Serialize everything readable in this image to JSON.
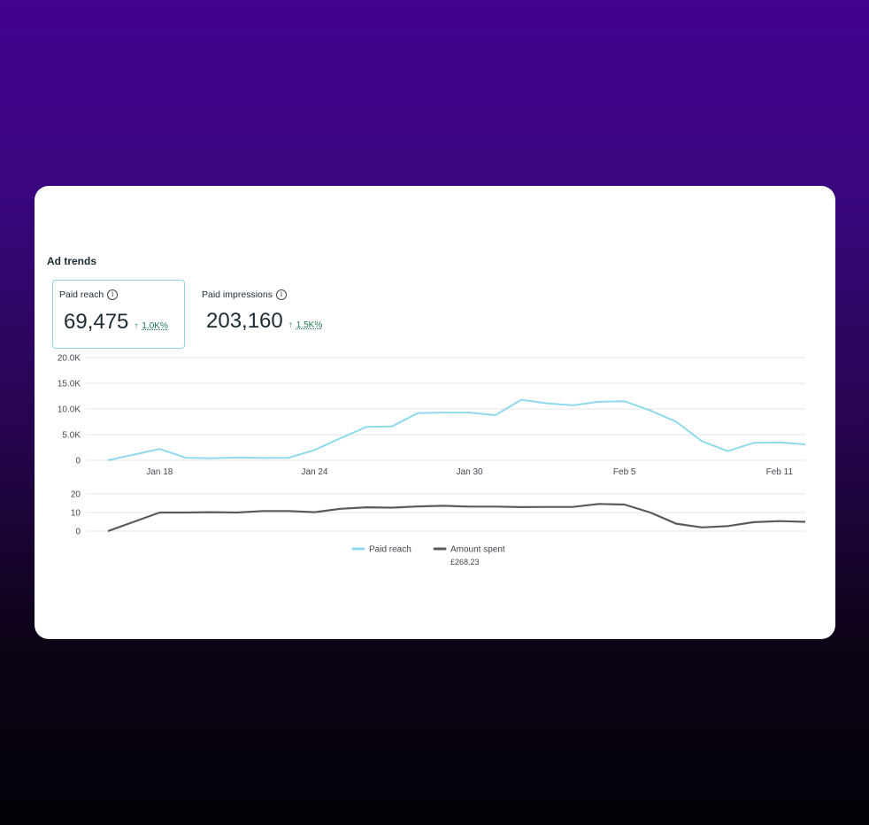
{
  "section_title": "Ad trends",
  "metrics": [
    {
      "label": "Paid reach",
      "value": "69,475",
      "change_arrow": "↑",
      "change": "1.0K%",
      "icon": "info-icon"
    },
    {
      "label": "Paid impressions",
      "value": "203,160",
      "change_arrow": "↑",
      "change": "1.5K%",
      "icon": "info-icon"
    }
  ],
  "colors": {
    "paid_reach": "#8fd9ee",
    "amount_spent": "#5b5b5b",
    "selected_border": "#8ed6e6",
    "change_positive": "#1f7a4d"
  },
  "chart_data": [
    {
      "type": "line",
      "x": [
        "Jan 16",
        "Jan 17",
        "Jan 18",
        "Jan 19",
        "Jan 20",
        "Jan 21",
        "Jan 22",
        "Jan 23",
        "Jan 24",
        "Jan 25",
        "Jan 26",
        "Jan 27",
        "Jan 28",
        "Jan 29",
        "Jan 30",
        "Jan 31",
        "Feb 1",
        "Feb 2",
        "Feb 3",
        "Feb 4",
        "Feb 5",
        "Feb 6",
        "Feb 7",
        "Feb 8",
        "Feb 9",
        "Feb 10",
        "Feb 11",
        "Feb 12"
      ],
      "x_tick_labels": [
        "Jan 18",
        "Jan 24",
        "Jan 30",
        "Feb 5",
        "Feb 11"
      ],
      "y_tick_labels": [
        "0",
        "5.0K",
        "10.0K",
        "15.0K",
        "20.0K"
      ],
      "ylim": [
        0,
        20000
      ],
      "grid": true,
      "series": [
        {
          "name": "Paid reach",
          "values": [
            0,
            1100,
            2200,
            500,
            400,
            550,
            450,
            500,
            2000,
            4300,
            6500,
            6600,
            9200,
            9300,
            9300,
            8800,
            11800,
            11100,
            10700,
            11400,
            11500,
            9700,
            7500,
            3700,
            1800,
            3400,
            3500,
            3100
          ]
        }
      ]
    },
    {
      "type": "line",
      "x": [
        "Jan 16",
        "Jan 17",
        "Jan 18",
        "Jan 19",
        "Jan 20",
        "Jan 21",
        "Jan 22",
        "Jan 23",
        "Jan 24",
        "Jan 25",
        "Jan 26",
        "Jan 27",
        "Jan 28",
        "Jan 29",
        "Jan 30",
        "Jan 31",
        "Feb 1",
        "Feb 2",
        "Feb 3",
        "Feb 4",
        "Feb 5",
        "Feb 6",
        "Feb 7",
        "Feb 8",
        "Feb 9",
        "Feb 10",
        "Feb 11",
        "Feb 12"
      ],
      "y_tick_labels": [
        "0",
        "10",
        "20"
      ],
      "ylim": [
        0,
        20
      ],
      "grid": true,
      "series": [
        {
          "name": "Amount spent",
          "values": [
            0,
            5,
            10,
            10,
            10.2,
            10,
            10.8,
            10.8,
            10.2,
            12,
            12.8,
            12.6,
            13.3,
            13.6,
            13.2,
            13.2,
            12.9,
            13,
            13,
            14.6,
            14.3,
            10,
            4,
            2,
            2.7,
            4.8,
            5.4,
            5
          ]
        }
      ]
    }
  ],
  "legend": [
    {
      "label": "Paid reach",
      "color_key": "paid_reach"
    },
    {
      "label": "Amount spent",
      "color_key": "amount_spent",
      "sublabel": "£268.23"
    }
  ]
}
